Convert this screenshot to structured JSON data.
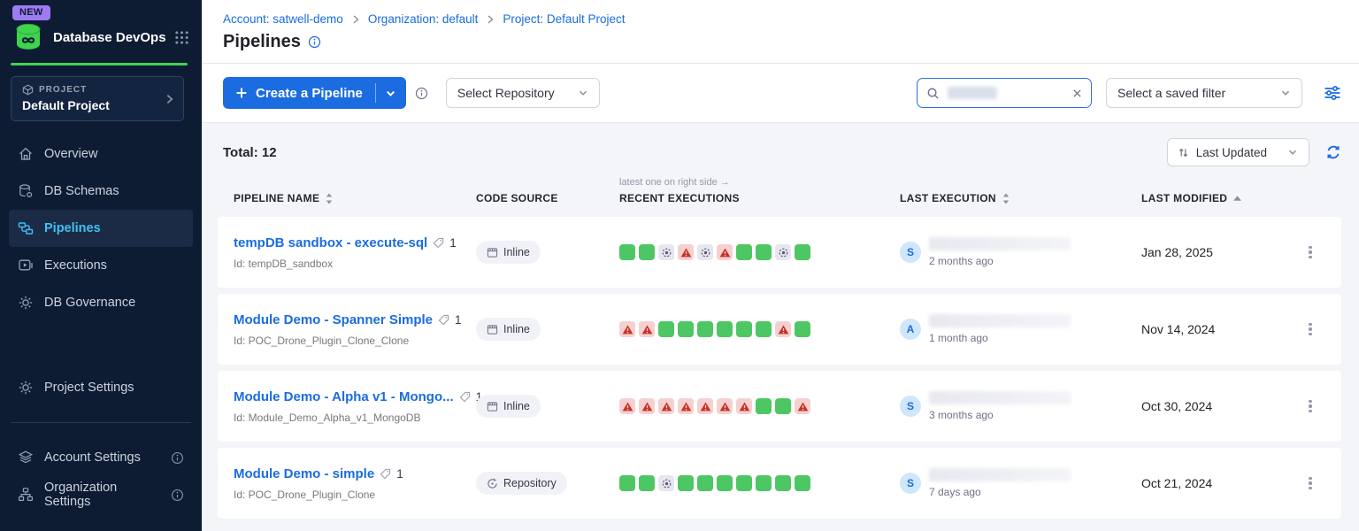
{
  "colors": {
    "primary_blue": "#1b6ce0",
    "brand_green": "#3fd34f",
    "sidebar_bg": "#0d1c33",
    "active_link_blue": "#41c0f3",
    "success_green": "#4dc763",
    "failed_bg": "#f6d0d0",
    "failed_icon_red": "#c43326",
    "aborted_bg": "#e7e6ef",
    "new_badge_purple": "#9d7bf3"
  },
  "sidebar": {
    "new_badge": "NEW",
    "app_title": "Database DevOps",
    "project": {
      "label": "PROJECT",
      "name": "Default Project"
    },
    "items": [
      {
        "label": "Overview",
        "icon": "home-icon",
        "active": false
      },
      {
        "label": "DB Schemas",
        "icon": "db-schemas-icon",
        "active": false
      },
      {
        "label": "Pipelines",
        "icon": "pipelines-icon",
        "active": true
      },
      {
        "label": "Executions",
        "icon": "executions-icon",
        "active": false
      },
      {
        "label": "DB Governance",
        "icon": "governance-icon",
        "active": false
      }
    ],
    "settings_items": [
      {
        "label": "Project Settings",
        "icon": "gear-icon",
        "has_info": false
      }
    ],
    "footer_items": [
      {
        "label": "Account Settings",
        "icon": "account-settings-icon",
        "has_info": true
      },
      {
        "label": "Organization Settings",
        "icon": "org-settings-icon",
        "has_info": true
      }
    ]
  },
  "header": {
    "breadcrumb": [
      {
        "label": "Account: satwell-demo"
      },
      {
        "label": "Organization: default"
      },
      {
        "label": "Project: Default Project"
      }
    ],
    "title": "Pipelines"
  },
  "toolbar": {
    "create_button_label": "Create a Pipeline",
    "repository_dropdown": "Select Repository",
    "search_value": "",
    "saved_filter_dropdown": "Select a saved filter"
  },
  "listbar": {
    "total_label": "Total: 12",
    "sort_dropdown": "Last Updated"
  },
  "table": {
    "headers": {
      "name": "PIPELINE NAME",
      "code_source": "CODE SOURCE",
      "recent_note": "latest one on right side →",
      "recent": "RECENT EXECUTIONS",
      "last_execution": "LAST EXECUTION",
      "last_modified": "LAST MODIFIED"
    },
    "sorted_by": "LAST MODIFIED",
    "rows": [
      {
        "name": "tempDB sandbox - execute-sql",
        "tag_count": "1",
        "id": "Id: tempDB_sandbox",
        "code_source": "Inline",
        "executions": [
          "success",
          "success",
          "aborted",
          "failed",
          "aborted",
          "failed",
          "success",
          "success",
          "aborted",
          "success"
        ],
        "avatar": "S",
        "time_ago": "2 months ago",
        "last_modified": "Jan 28, 2025"
      },
      {
        "name": "Module Demo - Spanner Simple",
        "tag_count": "1",
        "id": "Id: POC_Drone_Plugin_Clone_Clone",
        "code_source": "Inline",
        "executions": [
          "failed",
          "failed",
          "success",
          "success",
          "success",
          "success",
          "success",
          "success",
          "failed",
          "success"
        ],
        "avatar": "A",
        "time_ago": "1 month ago",
        "last_modified": "Nov 14, 2024"
      },
      {
        "name": "Module Demo - Alpha v1 - Mongo...",
        "tag_count": "1",
        "id": "Id: Module_Demo_Alpha_v1_MongoDB",
        "code_source": "Inline",
        "executions": [
          "failed",
          "failed",
          "failed",
          "failed",
          "failed",
          "failed",
          "failed",
          "success",
          "success",
          "failed"
        ],
        "avatar": "S",
        "time_ago": "3 months ago",
        "last_modified": "Oct 30, 2024"
      },
      {
        "name": "Module Demo - simple",
        "tag_count": "1",
        "id": "Id: POC_Drone_Plugin_Clone",
        "code_source": "Repository",
        "executions": [
          "success",
          "success",
          "aborted",
          "success",
          "success",
          "success",
          "success",
          "success",
          "success",
          "success"
        ],
        "avatar": "S",
        "time_ago": "7 days ago",
        "last_modified": "Oct 21, 2024"
      }
    ]
  }
}
